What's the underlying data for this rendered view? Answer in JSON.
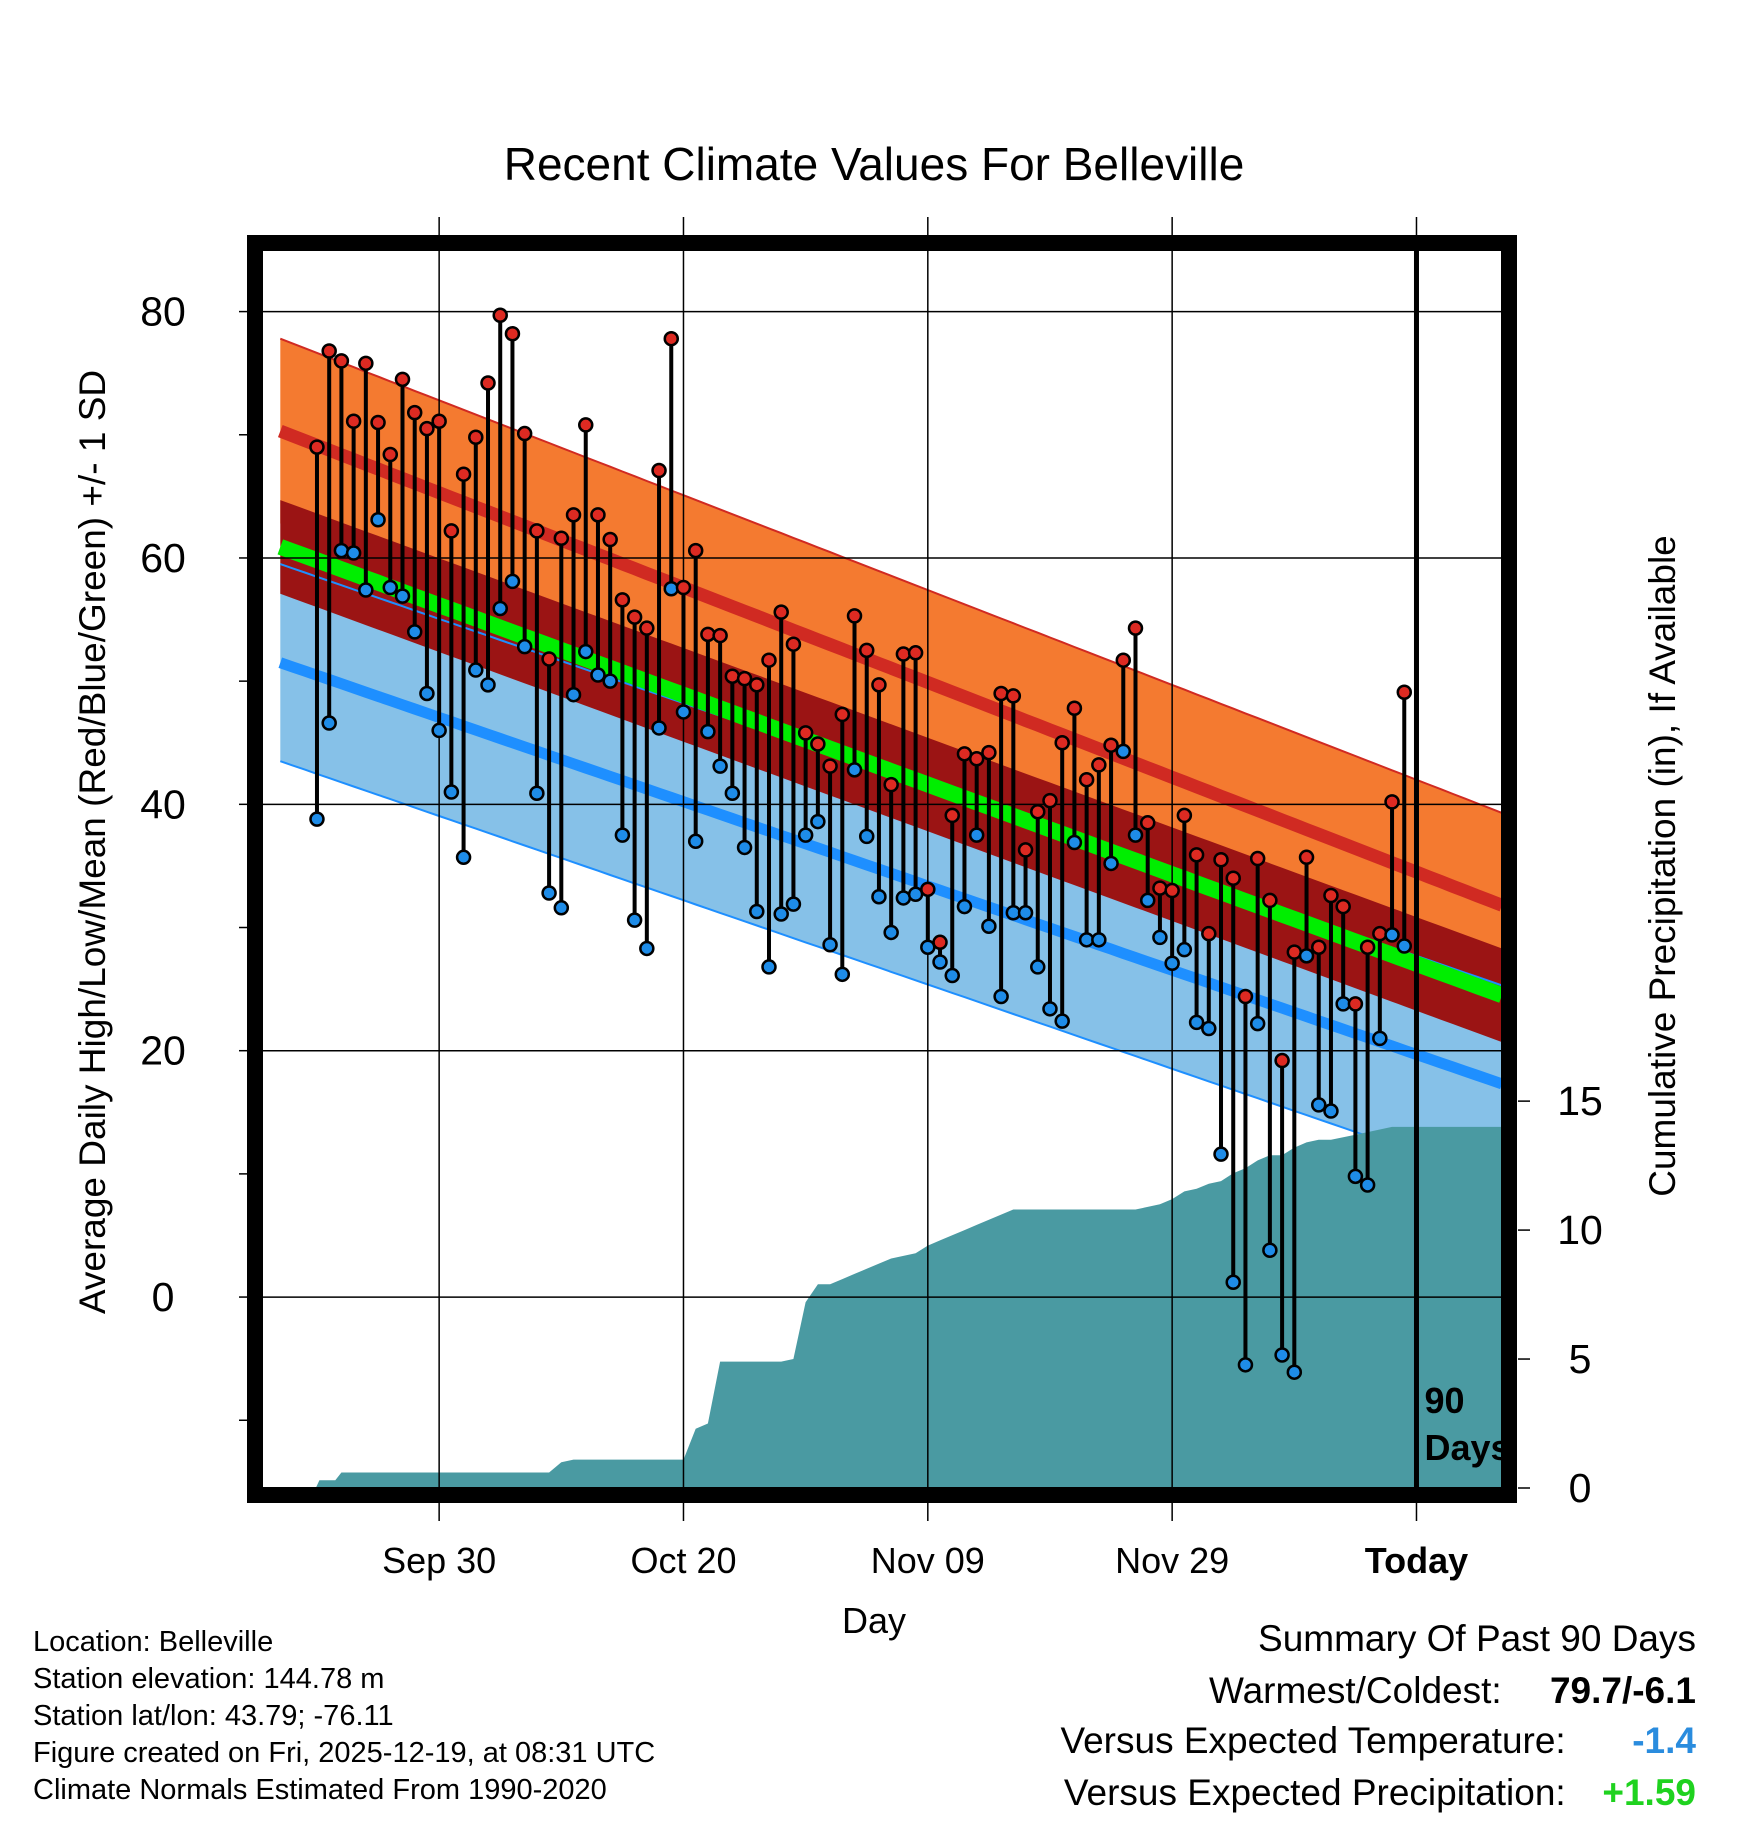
{
  "chart_data": {
    "type": "line",
    "title": "Recent Climate Values For Belleville",
    "xlabel": "Day",
    "ylabel": "Average Daily High/Low/Mean (Red/Blue/Green) +/- 1 SD",
    "y2label": "Cumulative Precipitation (in), If Available",
    "x_range_days_since_sep19": [
      -3.5,
      98
    ],
    "ylim": [
      -15.5,
      85
    ],
    "y2lim": [
      0,
      48
    ],
    "yticks": [
      0,
      20,
      40,
      60,
      80
    ],
    "y2ticks": [
      0,
      5,
      10,
      15
    ],
    "xticks": [
      {
        "day": 11,
        "label": "Sep 30"
      },
      {
        "day": 31,
        "label": "Oct 20"
      },
      {
        "day": 51,
        "label": "Nov 09"
      },
      {
        "day": 71,
        "label": "Nov 29"
      },
      {
        "day": 91,
        "label": "Today",
        "bold": true
      }
    ],
    "today_marker": {
      "day": 91,
      "label": "90 Days"
    },
    "colors": {
      "high_band": "#f47a30",
      "high_line": "#d02a22",
      "low_band": "#86c1e8",
      "low_line": "#1e8fff",
      "mean_band": "#9b1414",
      "mean_line": "#00ee00",
      "precip": "#4a9aa2",
      "high_dot": "#dd2a22",
      "low_dot": "#1e8ce8"
    },
    "normals": {
      "days": [
        -2,
        98
      ],
      "high_mean": [
        70.3,
        31.8
      ],
      "high_sd": 7.5,
      "low_mean": [
        51.5,
        17.3
      ],
      "low_sd": 8,
      "mean": [
        60.9,
        24.5
      ],
      "mean_sd": 3.8
    },
    "series": [
      {
        "name": "Daily High",
        "values": [
          69,
          76.8,
          76,
          71.1,
          75.8,
          71,
          68.4,
          74.5,
          71.8,
          70.5,
          71.1,
          62.2,
          66.8,
          69.8,
          74.2,
          79.7,
          78.2,
          70.1,
          62.2,
          51.8,
          61.6,
          63.5,
          70.8,
          63.5,
          61.5,
          56.6,
          55.2,
          54.3,
          67.1,
          77.8,
          57.6,
          60.6,
          53.8,
          53.7,
          50.4,
          50.2,
          49.7,
          51.7,
          55.6,
          53,
          45.8,
          44.9,
          43.1,
          47.3,
          55.3,
          52.5,
          49.7,
          41.6,
          52.2,
          52.3,
          33.1,
          28.8,
          39.1,
          44.1,
          43.7,
          44.2,
          49,
          48.8,
          36.3,
          39.4,
          40.3,
          45,
          47.8,
          42,
          43.2,
          44.8,
          51.7,
          54.3,
          38.5,
          33.2,
          33,
          39.1,
          35.9,
          29.5,
          35.5,
          34,
          24.4,
          35.6,
          32.2,
          19.2,
          28,
          35.7,
          28.4,
          32.6,
          31.7,
          23.8,
          28.4,
          29.5,
          40.2,
          49.1
        ]
      },
      {
        "name": "Daily Low",
        "values": [
          38.8,
          46.6,
          60.6,
          60.4,
          57.4,
          63.1,
          57.6,
          56.9,
          54,
          49,
          46,
          41,
          35.7,
          50.9,
          49.7,
          55.9,
          58.1,
          52.8,
          40.9,
          32.8,
          31.6,
          48.9,
          52.4,
          50.5,
          50,
          37.5,
          30.6,
          28.3,
          46.2,
          57.5,
          47.5,
          37,
          45.9,
          43.1,
          40.9,
          36.5,
          31.3,
          26.8,
          31.1,
          31.9,
          37.5,
          38.6,
          28.6,
          26.2,
          42.8,
          37.4,
          32.5,
          29.6,
          32.4,
          32.7,
          28.4,
          27.2,
          26.1,
          31.7,
          37.5,
          30.1,
          24.4,
          31.2,
          31.2,
          26.8,
          23.4,
          22.4,
          36.9,
          29,
          29,
          35.2,
          44.3,
          37.5,
          32.2,
          29.2,
          27.1,
          28.2,
          22.3,
          21.8,
          11.6,
          1.2,
          -5.5,
          22.2,
          3.8,
          -4.7,
          -6.1,
          27.7,
          15.6,
          15.1,
          23.8,
          9.8,
          9.1,
          21,
          29.4,
          28.5
        ]
      },
      {
        "name": "Cumulative Precipitation",
        "days": [
          -2,
          0.9,
          1.2,
          2.5,
          3,
          6,
          7,
          9,
          10,
          11,
          12,
          13,
          14,
          15,
          16,
          17,
          18,
          19,
          19.5,
          20,
          21,
          22,
          23,
          24,
          25,
          26,
          27,
          28,
          29,
          30,
          31,
          32,
          33,
          34,
          35,
          36,
          37,
          38,
          39,
          40,
          41,
          42,
          43,
          44,
          45,
          46,
          47,
          48,
          49,
          50,
          51,
          52,
          53,
          54,
          55,
          56,
          57,
          58,
          59,
          60,
          61,
          62,
          63,
          64,
          65,
          66,
          67,
          68,
          69,
          70,
          71,
          72,
          73,
          74,
          75,
          76,
          77,
          78,
          79,
          80,
          81,
          82,
          83,
          84,
          85,
          86,
          87,
          88,
          89,
          90,
          91,
          92,
          98
        ],
        "values": [
          0,
          0,
          0.3,
          0.3,
          0.6,
          0.6,
          0.6,
          0.6,
          0.6,
          0.6,
          0.6,
          0.6,
          0.6,
          0.6,
          0.6,
          0.6,
          0.6,
          0.6,
          0.6,
          0.6,
          1.0,
          1.1,
          1.1,
          1.1,
          1.1,
          1.1,
          1.1,
          1.1,
          1.1,
          1.1,
          1.1,
          2.3,
          2.5,
          4.9,
          4.9,
          4.9,
          4.9,
          4.9,
          4.9,
          5.0,
          7.2,
          7.9,
          7.9,
          8.1,
          8.3,
          8.5,
          8.7,
          8.9,
          9.0,
          9.1,
          9.4,
          9.6,
          9.8,
          10.0,
          10.2,
          10.4,
          10.6,
          10.8,
          10.8,
          10.8,
          10.8,
          10.8,
          10.8,
          10.8,
          10.8,
          10.8,
          10.8,
          10.8,
          10.9,
          11.0,
          11.2,
          11.5,
          11.6,
          11.8,
          11.9,
          12.2,
          12.4,
          12.7,
          12.9,
          12.9,
          13.2,
          13.4,
          13.5,
          13.5,
          13.6,
          13.7,
          13.8,
          13.9,
          14,
          14,
          14,
          14,
          14
        ]
      }
    ]
  },
  "footer": {
    "location": "Location: Belleville",
    "elevation": "Station elevation: 144.78 m",
    "latlon": "Station lat/lon: 43.79; -76.11",
    "created": "Figure created on Fri, 2025-12-19, at 08:31 UTC",
    "normals": "Climate Normals Estimated From 1990-2020"
  },
  "summary": {
    "heading": "Summary Of Past 90 Days",
    "warmest_coldest_label": "Warmest/Coldest:",
    "warmest_coldest_value": "79.7/-6.1",
    "temp_label": "Versus Expected Temperature:",
    "temp_value": "-1.4",
    "temp_color": "#2a8cde",
    "precip_label": "Versus Expected Precipitation:",
    "precip_value": "+1.59",
    "precip_color": "#1fd21f"
  }
}
